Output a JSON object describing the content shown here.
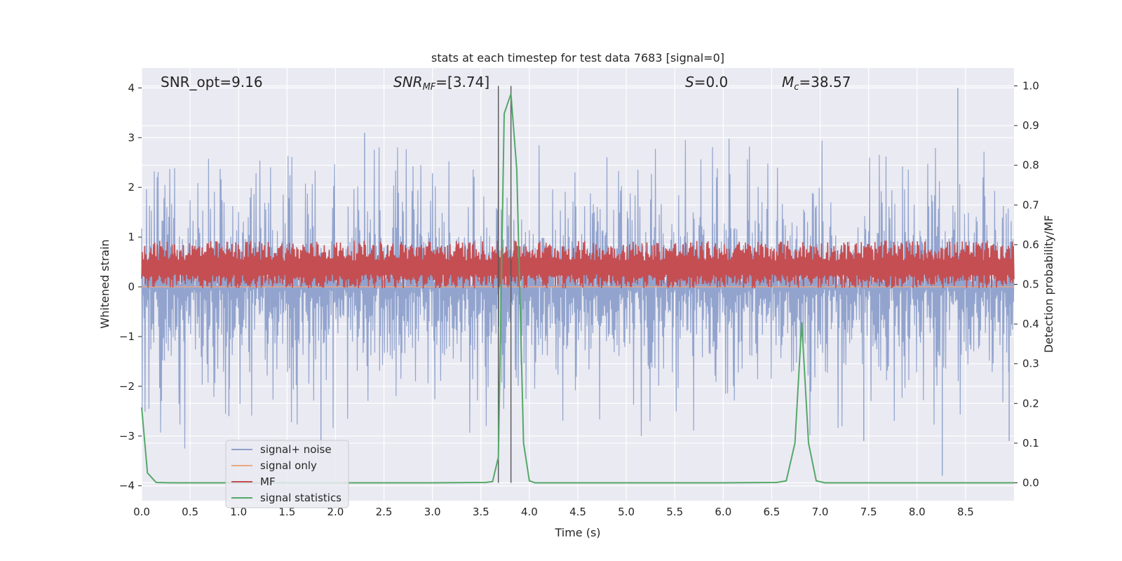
{
  "chart_data": {
    "type": "line",
    "title": "stats at each timestep for test data 7683 [signal=0]",
    "xlabel": "Time (s)",
    "ylabel_left": "Whitened strain",
    "ylabel_right": "Detection probability/MF",
    "xlim": [
      0.0,
      9.0
    ],
    "ylim_left": [
      -4.3,
      4.4
    ],
    "ylim_right": [
      -0.045,
      1.045
    ],
    "x_ticks": [
      "0.0",
      "0.5",
      "1.0",
      "1.5",
      "2.0",
      "2.5",
      "3.0",
      "3.5",
      "4.0",
      "4.5",
      "5.0",
      "5.5",
      "6.0",
      "6.5",
      "7.0",
      "7.5",
      "8.0",
      "8.5"
    ],
    "y_ticks_left": [
      "4",
      "3",
      "2",
      "1",
      "0",
      "−1",
      "−2",
      "−3",
      "−4"
    ],
    "y_ticks_right": [
      "1.0",
      "0.9",
      "0.8",
      "0.7",
      "0.6",
      "0.5",
      "0.4",
      "0.3",
      "0.2",
      "0.1",
      "0.0"
    ],
    "grid": true,
    "legend_position": "lower-left",
    "annotations": {
      "snr_opt": "SNR_opt=9.16",
      "snr_mf_sym": "SNR",
      "snr_mf_sub": "MF",
      "snr_mf_val": "=[3.74]",
      "s_sym": "S",
      "s_val": "=0.0",
      "mc_sym": "M",
      "mc_sub": "c",
      "mc_val": "=38.57"
    },
    "vertical_markers": [
      3.68,
      3.81
    ],
    "series": [
      {
        "name": "signal+ noise",
        "axis": "left",
        "color": "#8da0cb",
        "description": "noise envelope",
        "typical_range": [
          -1.8,
          1.9
        ],
        "peak_max": 4.0,
        "peak_min": -3.8
      },
      {
        "name": "signal only",
        "axis": "left",
        "color": "#e9a785",
        "values_note": "flat at 0"
      },
      {
        "name": "MF",
        "axis": "right",
        "color": "#c44e52",
        "typical_range": [
          0.49,
          0.6
        ]
      },
      {
        "name": "signal statistics",
        "axis": "right",
        "color": "#55a868",
        "x": [
          0.0,
          0.06,
          0.15,
          0.3,
          1.0,
          2.0,
          3.0,
          3.55,
          3.62,
          3.68,
          3.74,
          3.81,
          3.87,
          3.94,
          4.0,
          4.06,
          4.2,
          5.0,
          6.0,
          6.55,
          6.65,
          6.74,
          6.81,
          6.88,
          6.96,
          7.05,
          8.0,
          9.0
        ],
        "values": [
          0.19,
          0.025,
          0.001,
          0.0,
          0.0,
          0.0,
          0.0,
          0.001,
          0.003,
          0.065,
          0.93,
          0.98,
          0.79,
          0.1,
          0.005,
          0.0,
          0.0,
          0.0,
          0.0,
          0.001,
          0.005,
          0.1,
          0.405,
          0.1,
          0.005,
          0.0,
          0.0,
          0.0
        ]
      }
    ]
  }
}
